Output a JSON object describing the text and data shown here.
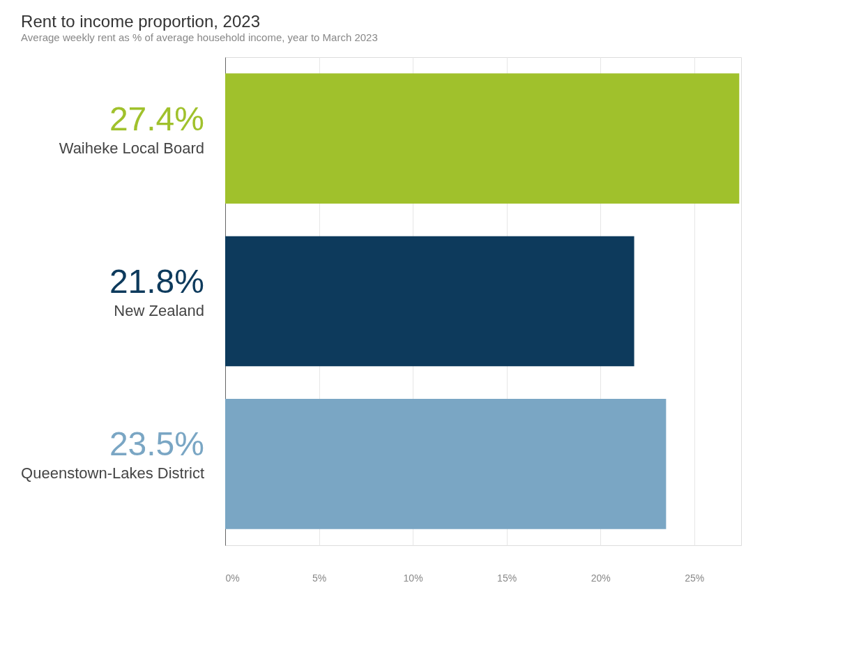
{
  "chart_data": {
    "type": "bar",
    "orientation": "horizontal",
    "title": "Rent to income proportion, 2023",
    "subtitle": "Average weekly rent as % of average household income, year to March 2023",
    "categories": [
      "Waiheke Local Board",
      "New Zealand",
      "Queenstown-Lakes District"
    ],
    "values": [
      27.4,
      21.8,
      23.5
    ],
    "colors": [
      "#a0c12c",
      "#0d3a5c",
      "#7aa6c4"
    ],
    "value_labels": [
      "27.4%",
      "21.8%",
      "23.5%"
    ],
    "xlim": [
      0,
      27.5
    ],
    "xticks": [
      {
        "value": 0,
        "label": "0%"
      },
      {
        "value": 5,
        "label": "5%"
      },
      {
        "value": 10,
        "label": "10%"
      },
      {
        "value": 15,
        "label": "15%"
      },
      {
        "value": 20,
        "label": "20%"
      },
      {
        "value": 25,
        "label": "25%"
      }
    ],
    "grid": "x"
  }
}
